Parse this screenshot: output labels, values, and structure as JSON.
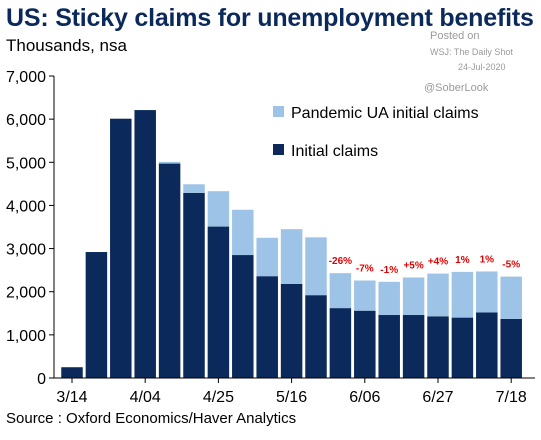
{
  "header": {
    "title": "US: Sticky claims for unemployment benefits",
    "subtitle": "Thousands, nsa"
  },
  "watermark": {
    "posted_on": "Posted on",
    "outlet": "WSJ: The Daily Shot",
    "date": "24-Jul-2020",
    "handle": "@SoberLook"
  },
  "footer": {
    "source": "Source : Oxford Economics/Haver Analytics"
  },
  "chart_data": {
    "type": "bar",
    "stacked": true,
    "x_tick_labels": [
      "3/14",
      "4/04",
      "4/25",
      "5/16",
      "6/06",
      "6/27",
      "7/18"
    ],
    "x_tick_indices": [
      0,
      3,
      6,
      9,
      12,
      15,
      18
    ],
    "categories": [
      "3/14",
      "3/21",
      "3/28",
      "4/04",
      "4/11",
      "4/18",
      "4/25",
      "5/02",
      "5/09",
      "5/16",
      "5/23",
      "5/30",
      "6/06",
      "6/13",
      "6/20",
      "6/27",
      "7/04",
      "7/11",
      "7/18"
    ],
    "series": [
      {
        "name": "Initial claims",
        "color": "#0b2a5b",
        "values": [
          250,
          2920,
          6010,
          6210,
          4970,
          4290,
          3510,
          2850,
          2360,
          2180,
          1920,
          1620,
          1560,
          1460,
          1460,
          1430,
          1400,
          1520,
          1370
        ]
      },
      {
        "name": "Pandemic UA initial claims",
        "color": "#9dc3e6",
        "values": [
          0,
          0,
          0,
          0,
          40,
          200,
          820,
          1050,
          890,
          1270,
          1340,
          810,
          700,
          770,
          870,
          990,
          1060,
          950,
          980
        ]
      }
    ],
    "annotations": [
      {
        "index": 11,
        "text": "-26%"
      },
      {
        "index": 12,
        "text": "-7%"
      },
      {
        "index": 13,
        "text": "-1%"
      },
      {
        "index": 14,
        "text": "+5%"
      },
      {
        "index": 15,
        "text": "+4%"
      },
      {
        "index": 16,
        "text": "1%"
      },
      {
        "index": 17,
        "text": "1%"
      },
      {
        "index": 18,
        "text": "-5%"
      }
    ],
    "annotation_color": "#e00000",
    "y_ticks": [
      0,
      1000,
      2000,
      3000,
      4000,
      5000,
      6000,
      7000
    ],
    "y_tick_labels": [
      "0",
      "1,000",
      "2,000",
      "3,000",
      "4,000",
      "5,000",
      "6,000",
      "7,000"
    ],
    "ylim": [
      0,
      7000
    ],
    "legend_position": "top-right",
    "grid": false
  }
}
